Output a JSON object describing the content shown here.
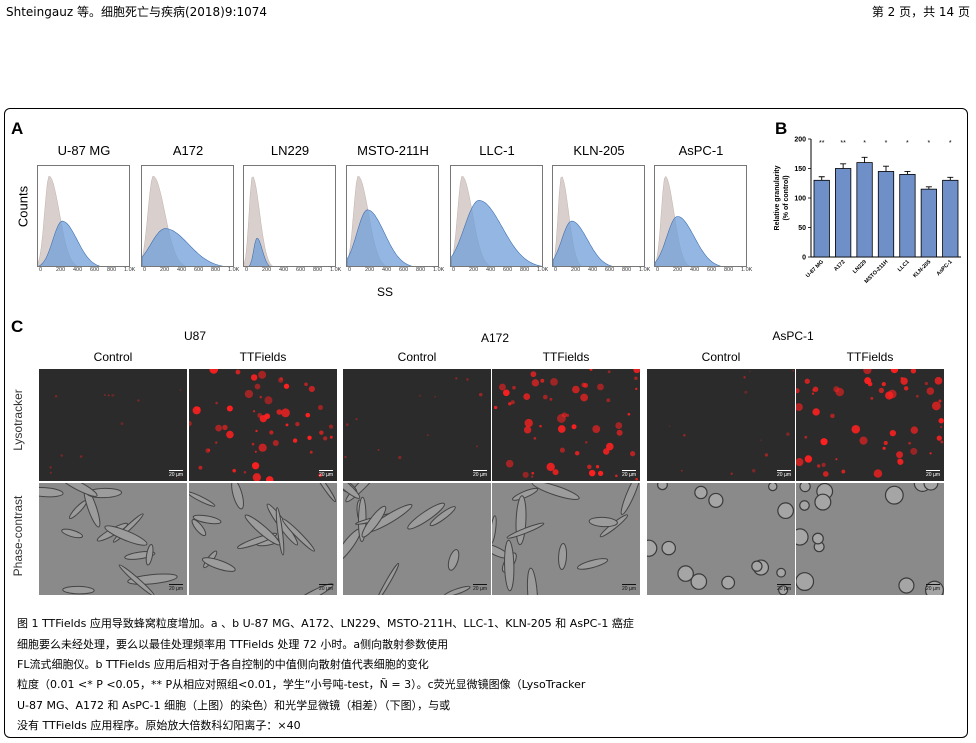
{
  "header": {
    "left": "Shteingauz 等。细胞死亡与疾病(2018)9:1074",
    "right": "第 2 页，共 14 页"
  },
  "panel_a": {
    "letter": "A",
    "ylabel": "Counts",
    "xlabel": "SS",
    "tick_labels": [
      "0",
      "200",
      "400",
      "600",
      "800",
      "1.0K"
    ],
    "cell_lines": [
      "U-87 MG",
      "A172",
      "LN229",
      "MSTO-211H",
      "LLC-1",
      "KLN-205",
      "AsPC-1"
    ],
    "colors": {
      "control": "#d9cfcc",
      "ttfields": "#6f9fd8"
    }
  },
  "panel_b": {
    "letter": "B",
    "chart_data": {
      "type": "bar",
      "categories": [
        "U-87 MG",
        "A172",
        "LN229",
        "MSTO-211H",
        "LLC1",
        "KLN-205",
        "AsPC-1"
      ],
      "values": [
        130,
        150,
        160,
        145,
        140,
        115,
        130
      ],
      "errors": [
        6,
        8,
        9,
        9,
        5,
        4,
        5
      ],
      "significance": [
        "**",
        "**",
        "*",
        "*",
        "*",
        "*",
        "*"
      ],
      "ylabel": "Relative granularity\n(% of control)",
      "ylim": [
        0,
        200
      ],
      "yticks": [
        0,
        50,
        100,
        150,
        200
      ],
      "bar_color": "#6f8fc9"
    }
  },
  "panel_c": {
    "letter": "C",
    "groups": [
      {
        "name": "U87",
        "conditions": [
          "Control",
          "TTFields"
        ]
      },
      {
        "name": "A172",
        "conditions": [
          "Control",
          "TTFields"
        ]
      },
      {
        "name": "AsPC-1",
        "conditions": [
          "Control",
          "TTFields"
        ]
      }
    ],
    "rows": [
      "Lysotracker",
      "Phase-contrast"
    ],
    "scale_bar": "20 µm"
  },
  "caption": [
    "图 1 TTFields 应用导致蜂窝粒度增加。a 、b U-87 MG、A172、LN229、MSTO-211H、LLC-1、KLN-205 和 AsPC-1 癌症",
    "细胞要么未经处理，要么以最佳处理频率用 TTFields 处理 72 小时。a侧向散射参数使用",
    "FL流式细胞仪。b TTFields 应用后相对于各自控制的中值侧向散射值代表细胞的变化",
    "粒度（0.01 <* P <0.05，** P从相应对照组<0.01，学生“小号吨-test，Ñ = 3）。c荧光显微镜图像（LysoTracker",
    "U-87 MG、A172 和 AsPC-1 细胞（上图）的染色）和光学显微镜（相差）（下图），与或",
    "没有 TTFields 应用程序。原始放大倍数科幻阳离子：×40"
  ]
}
